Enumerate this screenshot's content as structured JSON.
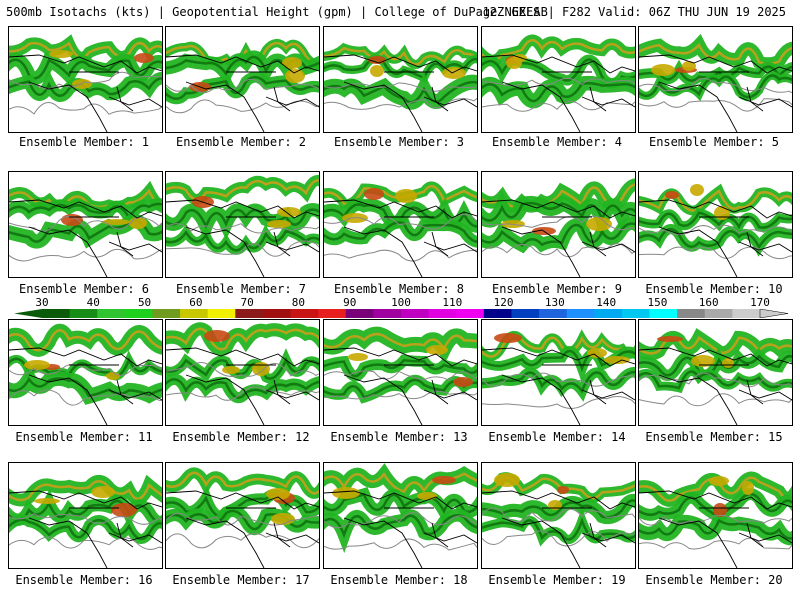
{
  "header": {
    "title_left": "500mb Isotachs (kts) | Geopotential Height (gpm) | College of DuPage NEXLAB",
    "title_right": "12Z GEFS | F282 Valid: 06Z THU JUN 19 2025"
  },
  "colorbar": {
    "labels": [
      "30",
      "40",
      "50",
      "60",
      "70",
      "80",
      "90",
      "100",
      "110",
      "120",
      "130",
      "140",
      "150",
      "160",
      "170"
    ],
    "colors": [
      "#0a5a0a",
      "#178c17",
      "#2fc42f",
      "#1ed01e",
      "#6f9b1e",
      "#c8c800",
      "#f0f000",
      "#8b1a1a",
      "#a01010",
      "#c81414",
      "#e61e1e",
      "#7a007a",
      "#a000a0",
      "#c000c0",
      "#e000e0",
      "#f000f0",
      "#00008b",
      "#0040c0",
      "#1e64dc",
      "#1e90ff",
      "#00aaf0",
      "#00c8f0",
      "#00ffff",
      "#888888",
      "#aaaaaa",
      "#cccccc"
    ]
  },
  "panels": [
    {
      "label": "Ensemble Member: 1"
    },
    {
      "label": "Ensemble Member: 2"
    },
    {
      "label": "Ensemble Member: 3"
    },
    {
      "label": "Ensemble Member: 4"
    },
    {
      "label": "Ensemble Member: 5"
    },
    {
      "label": "Ensemble Member: 6"
    },
    {
      "label": "Ensemble Member: 7"
    },
    {
      "label": "Ensemble Member: 8"
    },
    {
      "label": "Ensemble Member: 9"
    },
    {
      "label": "Ensemble Member: 10"
    },
    {
      "label": "Ensemble Member: 11"
    },
    {
      "label": "Ensemble Member: 12"
    },
    {
      "label": "Ensemble Member: 13"
    },
    {
      "label": "Ensemble Member: 14"
    },
    {
      "label": "Ensemble Member: 15"
    },
    {
      "label": "Ensemble Member: 16"
    },
    {
      "label": "Ensemble Member: 17"
    },
    {
      "label": "Ensemble Member: 18"
    },
    {
      "label": "Ensemble Member: 19"
    },
    {
      "label": "Ensemble Member: 20"
    }
  ]
}
